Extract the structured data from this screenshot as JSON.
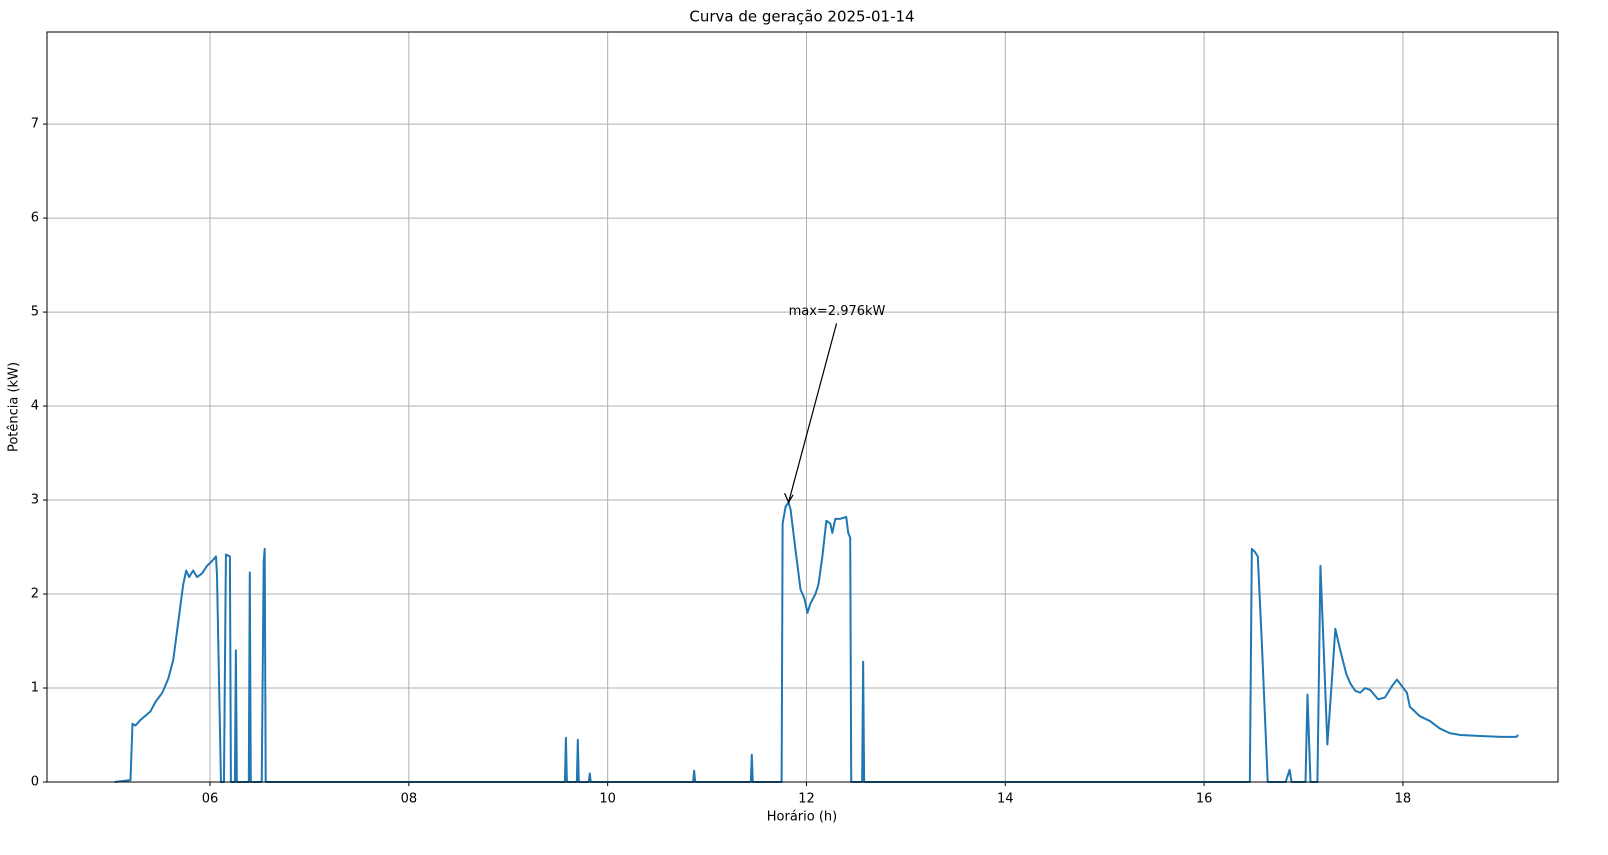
{
  "chart_data": {
    "type": "line",
    "title": "Curva de geração 2025-01-14",
    "x_label": "Horário (h)",
    "y_label": "Potência (kW)",
    "color": "#1f77b4",
    "grid": true,
    "xlim": [
      4.36,
      19.56
    ],
    "ylim": [
      0,
      7.98
    ],
    "xticks": [
      {
        "value": 6,
        "label": "06"
      },
      {
        "value": 8,
        "label": "08"
      },
      {
        "value": 10,
        "label": "10"
      },
      {
        "value": 12,
        "label": "12"
      },
      {
        "value": 14,
        "label": "14"
      },
      {
        "value": 16,
        "label": "16"
      },
      {
        "value": 18,
        "label": "18"
      }
    ],
    "yticks": [
      0,
      1,
      2,
      3,
      4,
      5,
      6,
      7
    ],
    "x": [
      5.04,
      5.2,
      5.22,
      5.25,
      5.3,
      5.4,
      5.45,
      5.52,
      5.58,
      5.63,
      5.68,
      5.73,
      5.76,
      5.79,
      5.83,
      5.87,
      5.92,
      5.97,
      6.02,
      6.06,
      6.07,
      6.11,
      6.14,
      6.16,
      6.2,
      6.21,
      6.25,
      6.26,
      6.27,
      6.39,
      6.4,
      6.41,
      6.52,
      6.54,
      6.55,
      6.56,
      9.57,
      9.58,
      9.59,
      9.69,
      9.7,
      9.71,
      9.81,
      9.82,
      9.83,
      10.86,
      10.87,
      10.88,
      11.44,
      11.45,
      11.46,
      11.75,
      11.76,
      11.79,
      11.82,
      11.84,
      11.88,
      11.91,
      11.94,
      11.98,
      12.01,
      12.04,
      12.09,
      12.12,
      12.16,
      12.2,
      12.24,
      12.26,
      12.29,
      12.34,
      12.4,
      12.42,
      12.44,
      12.45,
      12.56,
      12.57,
      12.58,
      16.46,
      16.48,
      16.51,
      16.54,
      16.58,
      16.64,
      16.82,
      16.86,
      16.88,
      17.02,
      17.04,
      17.07,
      17.14,
      17.17,
      17.2,
      17.24,
      17.28,
      17.32,
      17.37,
      17.43,
      17.47,
      17.52,
      17.57,
      17.62,
      17.67,
      17.75,
      17.82,
      17.89,
      17.94,
      17.99,
      18.04,
      18.07,
      18.12,
      18.17,
      18.27,
      18.37,
      18.47,
      18.58,
      18.78,
      18.99,
      19.14,
      19.16
    ],
    "values": [
      0,
      0.02,
      0.62,
      0.6,
      0.66,
      0.75,
      0.85,
      0.95,
      1.1,
      1.3,
      1.7,
      2.1,
      2.25,
      2.18,
      2.25,
      2.18,
      2.22,
      2.3,
      2.35,
      2.4,
      2.2,
      0,
      0,
      2.42,
      2.4,
      0,
      0,
      1.4,
      0,
      0,
      2.23,
      0,
      0,
      2.35,
      2.48,
      0,
      0,
      0.47,
      0,
      0,
      0.45,
      0,
      0,
      0.09,
      0,
      0,
      0.12,
      0,
      0,
      0.29,
      0,
      0,
      2.75,
      2.93,
      2.976,
      2.9,
      2.55,
      2.3,
      2.05,
      1.95,
      1.8,
      1.9,
      2.0,
      2.1,
      2.4,
      2.78,
      2.75,
      2.65,
      2.8,
      2.8,
      2.82,
      2.65,
      2.6,
      0,
      0,
      1.28,
      0,
      0,
      2.48,
      2.45,
      2.4,
      1.5,
      0,
      0,
      0.13,
      0,
      0,
      0.93,
      0,
      0,
      2.3,
      1.5,
      0.4,
      1.0,
      1.63,
      1.4,
      1.15,
      1.05,
      0.97,
      0.95,
      1.0,
      0.98,
      0.88,
      0.9,
      1.02,
      1.09,
      1.02,
      0.95,
      0.8,
      0.75,
      0.7,
      0.65,
      0.57,
      0.52,
      0.5,
      0.49,
      0.48,
      0.48,
      0.5
    ],
    "annotation": {
      "text": "max=2.976kW",
      "x": 11.82,
      "y": 2.976
    }
  }
}
